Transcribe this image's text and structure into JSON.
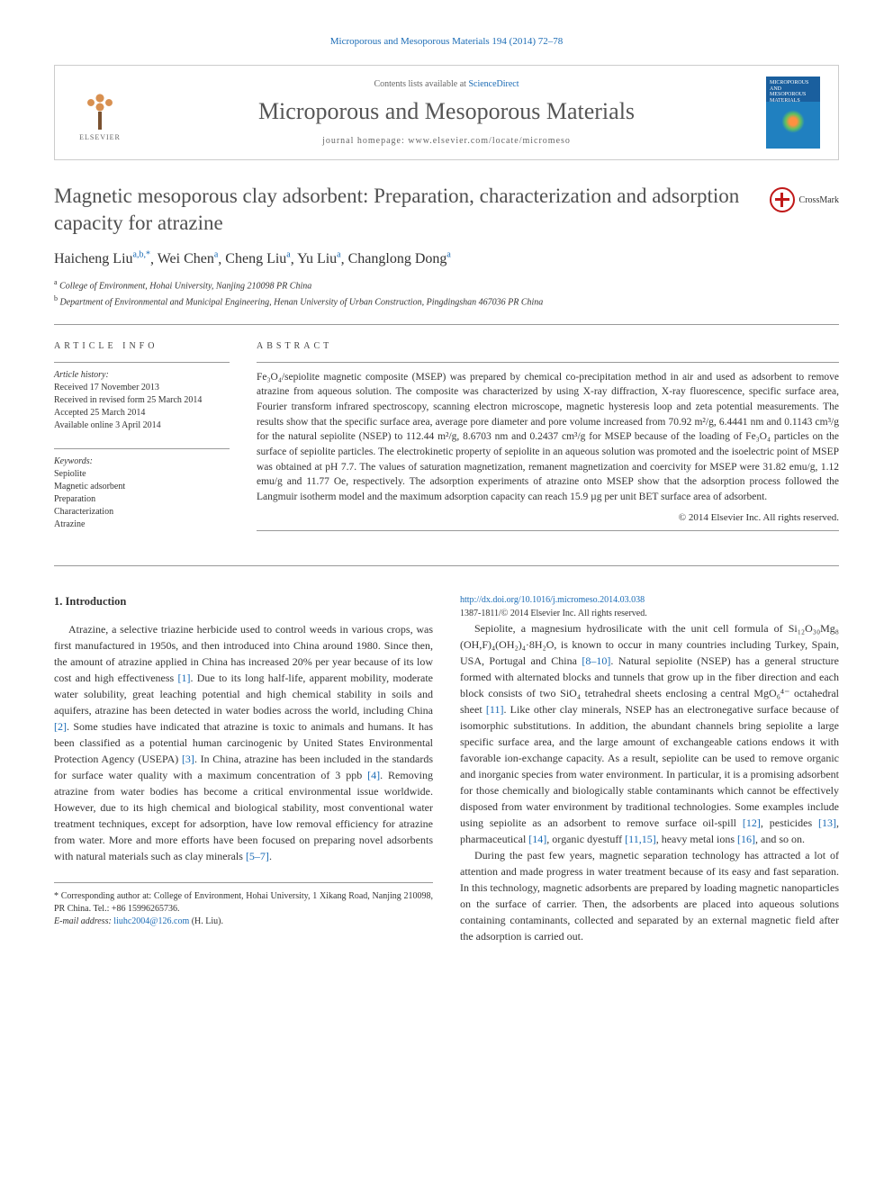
{
  "top_citation": {
    "journal": "Microporous and Mesoporous Materials",
    "volume_pages": "194 (2014) 72–78"
  },
  "header": {
    "elsevier": "ELSEVIER",
    "contents_prefix": "Contents lists available at ",
    "contents_link": "ScienceDirect",
    "journal_name": "Microporous and Mesoporous Materials",
    "homepage_prefix": "journal homepage: ",
    "homepage_url": "www.elsevier.com/locate/micromeso",
    "cover_title": "MICROPOROUS AND MESOPOROUS MATERIALS"
  },
  "crossmark": "CrossMark",
  "title": "Magnetic mesoporous clay adsorbent: Preparation, characterization and adsorption capacity for atrazine",
  "authors_html": "Haicheng Liu",
  "authors": [
    {
      "name": "Haicheng Liu",
      "sup": "a,b,*"
    },
    {
      "name": "Wei Chen",
      "sup": "a"
    },
    {
      "name": "Cheng Liu",
      "sup": "a"
    },
    {
      "name": "Yu Liu",
      "sup": "a"
    },
    {
      "name": "Changlong Dong",
      "sup": "a"
    }
  ],
  "affiliations": [
    {
      "sup": "a",
      "text": "College of Environment, Hohai University, Nanjing 210098 PR China"
    },
    {
      "sup": "b",
      "text": "Department of Environmental and Municipal Engineering, Henan University of Urban Construction, Pingdingshan 467036 PR China"
    }
  ],
  "info": {
    "section_label": "ARTICLE INFO",
    "history_heading": "Article history:",
    "history": [
      "Received 17 November 2013",
      "Received in revised form 25 March 2014",
      "Accepted 25 March 2014",
      "Available online 3 April 2014"
    ],
    "keywords_heading": "Keywords:",
    "keywords": [
      "Sepiolite",
      "Magnetic adsorbent",
      "Preparation",
      "Characterization",
      "Atrazine"
    ]
  },
  "abstract": {
    "section_label": "ABSTRACT",
    "text": "Fe₃O₄/sepiolite magnetic composite (MSEP) was prepared by chemical co-precipitation method in air and used as adsorbent to remove atrazine from aqueous solution. The composite was characterized by using X-ray diffraction, X-ray fluorescence, specific surface area, Fourier transform infrared spectroscopy, scanning electron microscope, magnetic hysteresis loop and zeta potential measurements. The results show that the specific surface area, average pore diameter and pore volume increased from 70.92 m²/g, 6.4441 nm and 0.1143 cm³/g for the natural sepiolite (NSEP) to 112.44 m²/g, 8.6703 nm and 0.2437 cm³/g for MSEP because of the loading of Fe₃O₄ particles on the surface of sepiolite particles. The electrokinetic property of sepiolite in an aqueous solution was promoted and the isoelectric point of MSEP was obtained at pH 7.7. The values of saturation magnetization, remanent magnetization and coercivity for MSEP were 31.82 emu/g, 1.12 emu/g and 11.77 Oe, respectively. The adsorption experiments of atrazine onto MSEP show that the adsorption process followed the Langmuir isotherm model and the maximum adsorption capacity can reach 15.9 µg per unit BET surface area of adsorbent.",
    "copyright": "© 2014 Elsevier Inc. All rights reserved."
  },
  "body": {
    "heading": "1. Introduction",
    "p1_a": "Atrazine, a selective triazine herbicide used to control weeds in various crops, was first manufactured in 1950s, and then introduced into China around 1980. Since then, the amount of atrazine applied in China has increased 20% per year because of its low cost and high effectiveness ",
    "p1_r1": "[1]",
    "p1_b": ". Due to its long half-life, apparent mobility, moderate water solubility, great leaching potential and high chemical stability in soils and aquifers, atrazine has been detected in water bodies across the world, including China ",
    "p1_r2": "[2]",
    "p1_c": ". Some studies have indicated that atrazine is toxic to animals and humans. It has been classified as a potential human carcinogenic by United States Environmental Protection Agency (USEPA) ",
    "p1_r3": "[3]",
    "p1_d": ". In China, atrazine has been included in the standards for surface water quality with a maximum concentration of 3 ppb ",
    "p1_r4": "[4]",
    "p1_e": ". Removing atrazine from water bodies has become a critical environmental issue worldwide. However, due to its high chemical and biological stability, most conventional water treatment techniques, except for adsorption, have low removal efficiency for atrazine from water. More and more efforts have been focused on preparing novel adsorbents with natural materials such as clay minerals ",
    "p1_r5": "[5–7]",
    "p1_f": ".",
    "p2_a": "Sepiolite, a magnesium hydrosilicate with the unit cell formula of Si₁₂O₃₀Mg₈ (OH,F)₄(OH₂)₄·8H₂O, is known to occur in many countries including Turkey, Spain, USA, Portugal and China ",
    "p2_r1": "[8–10]",
    "p2_b": ". Natural sepiolite (NSEP) has a general structure formed with alternated blocks and tunnels that grow up in the fiber direction and each block consists of two SiO₄ tetrahedral sheets enclosing a central MgO₆⁴⁻ octahedral sheet ",
    "p2_r2": "[11]",
    "p2_c": ". Like other clay minerals, NSEP has an electronegative surface because of isomorphic substitutions. In addition, the abundant channels bring sepiolite a large specific surface area, and the large amount of exchangeable cations endows it with favorable ion-exchange capacity. As a result, sepiolite can be used to remove organic and inorganic species from water environment. In particular, it is a promising adsorbent for those chemically and biologically stable contaminants which cannot be effectively disposed from water environment by traditional technologies. Some examples include using sepiolite as an adsorbent to remove surface oil-spill ",
    "p2_r3": "[12]",
    "p2_d": ", pesticides ",
    "p2_r4": "[13]",
    "p2_e": ", pharmaceutical ",
    "p2_r5": "[14]",
    "p2_f": ", organic dyestuff ",
    "p2_r6": "[11,15]",
    "p2_g": ", heavy metal ions ",
    "p2_r7": "[16]",
    "p2_h": ", and so on.",
    "p3": "During the past few years, magnetic separation technology has attracted a lot of attention and made progress in water treatment because of its easy and fast separation. In this technology, magnetic adsorbents are prepared by loading magnetic nanoparticles on the surface of carrier. Then, the adsorbents are placed into aqueous solutions containing contaminants, collected and separated by an external magnetic field after the adsorption is carried out."
  },
  "footnote": {
    "corr": "* Corresponding author at: College of Environment, Hohai University, 1 Xikang Road, Nanjing 210098, PR China. Tel.: +86 15996265736.",
    "email_label": "E-mail address: ",
    "email": "liuhc2004@126.com",
    "email_suffix": " (H. Liu)."
  },
  "bottom": {
    "doi": "http://dx.doi.org/10.1016/j.micromeso.2014.03.038",
    "issn": "1387-1811/© 2014 Elsevier Inc. All rights reserved."
  },
  "colors": {
    "link": "#1a6bb5",
    "text": "#333333",
    "heading": "#505050",
    "border": "#cccccc",
    "crossmark": "#c01818"
  }
}
